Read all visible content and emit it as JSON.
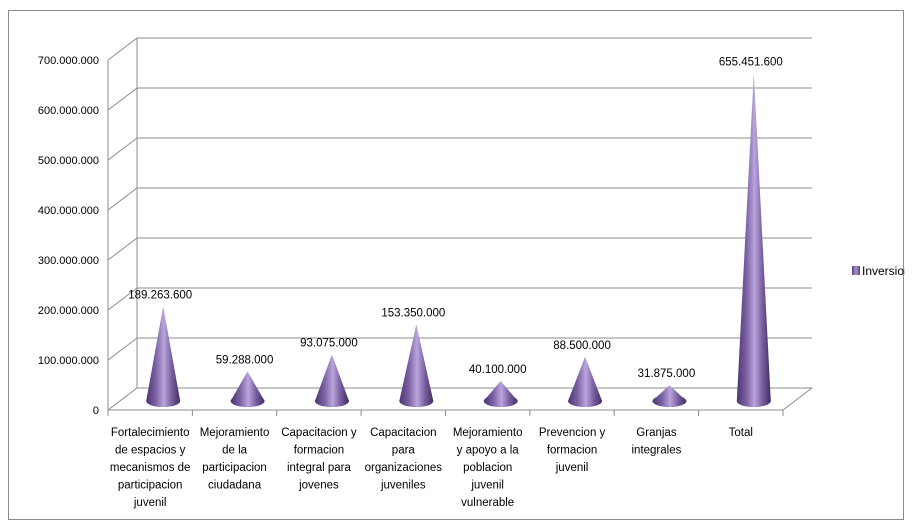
{
  "chart_data": {
    "type": "bar",
    "bar_shape": "cone",
    "categories": [
      "Fortalecimiento de espacios y mecanismos de participacion juvenil",
      "Mejoramiento de la participacion ciudadana",
      "Capacitacion y formacion integral para jovenes",
      "Capacitacion para organizaciones juveniles",
      "Mejoramiento y apoyo a la poblacion juvenil vulnerable",
      "Prevencion y formacion juvenil",
      "Granjas integrales",
      "Total"
    ],
    "category_lines": [
      [
        "Fortalecimiento",
        "de espacios y",
        "mecanismos de",
        "participacion",
        "juvenil"
      ],
      [
        "Mejoramiento",
        "de la",
        "participacion",
        "ciudadana"
      ],
      [
        "Capacitacion y",
        "formacion",
        "integral para",
        "jovenes"
      ],
      [
        "Capacitacion",
        "para",
        "organizaciones",
        "juveniles"
      ],
      [
        "Mejoramiento",
        "y apoyo a la",
        "poblacion",
        "juvenil",
        "vulnerable"
      ],
      [
        "Prevencion y",
        "formacion",
        "juvenil"
      ],
      [
        "Granjas",
        "integrales"
      ],
      [
        "Total"
      ]
    ],
    "series": [
      {
        "name": "Inversion",
        "values": [
          189263600,
          59288000,
          93075000,
          153350000,
          40100000,
          88500000,
          31875000,
          655451600
        ],
        "labels": [
          "189.263.600",
          "59.288.000",
          "93.075.000",
          "153.350.000",
          "40.100.000",
          "88.500.000",
          "31.875.000",
          "655.451.600"
        ],
        "color": "#8064a2"
      }
    ],
    "ylim": [
      0,
      700000000
    ],
    "yticks": [
      0,
      100000000,
      200000000,
      300000000,
      400000000,
      500000000,
      600000000,
      700000000
    ],
    "ytick_labels": [
      "0",
      "100.000.000",
      "200.000.000",
      "300.000.000",
      "400.000.000",
      "500.000.000",
      "600.000.000",
      "700.000.000"
    ],
    "title": "",
    "xlabel": "",
    "ylabel": "",
    "grid": true,
    "legend": "right",
    "grid_color": "#8c8c8c"
  }
}
